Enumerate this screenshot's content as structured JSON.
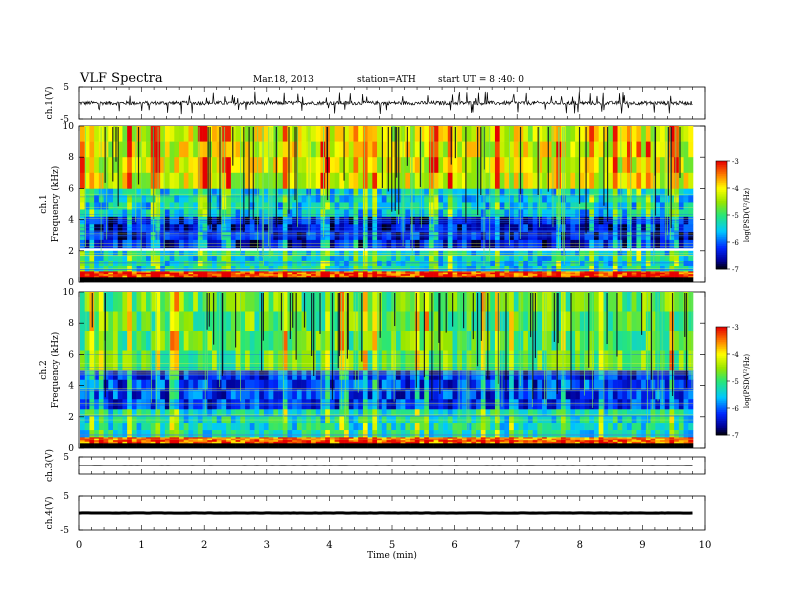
{
  "header": {
    "title": "VLF Spectra",
    "date": "Mar.18, 2013",
    "station": "station=ATH",
    "start": "start UT = 8 :40: 0"
  },
  "chart_data": [
    {
      "type": "line",
      "panel": "ch1-waveform",
      "ylabel": "ch.1(V)",
      "yticks": [
        "5",
        "-5"
      ],
      "ylim": [
        -5,
        5
      ],
      "x_range_min": [
        0,
        9.8
      ],
      "note_values": "broadband noise around ~0 V with spikes to about ±2 V"
    },
    {
      "type": "heatmap",
      "panel": "ch1-spectrogram",
      "ylabel": "ch.1 Frequency (kHz)",
      "yticks": [
        "0",
        "2",
        "4",
        "6",
        "8",
        "10"
      ],
      "ylim": [
        0,
        10
      ],
      "colorbar": {
        "label": "log(PSD(V²/Hz)",
        "ticks": [
          "-3",
          "-4",
          "-5",
          "-6",
          "-7"
        ],
        "range": [
          -7,
          -3
        ]
      },
      "bands_khz": [
        {
          "from": 0.3,
          "to": 0.7,
          "logpsd": -3.3
        },
        {
          "from": 0.7,
          "to": 2.0,
          "logpsd": -5.4
        },
        {
          "from": 2.2,
          "to": 4.2,
          "logpsd": -6.4
        },
        {
          "from": 4.2,
          "to": 6.0,
          "logpsd": -5.5
        },
        {
          "from": 6.0,
          "to": 10.0,
          "logpsd": -4.2
        }
      ]
    },
    {
      "type": "heatmap",
      "panel": "ch2-spectrogram",
      "ylabel": "ch.2 Frequency (kHz)",
      "yticks": [
        "0",
        "2",
        "4",
        "6",
        "8",
        "10"
      ],
      "ylim": [
        0,
        10
      ],
      "colorbar": {
        "label": "log(PSD(V²/Hz)",
        "ticks": [
          "-3",
          "-4",
          "-5",
          "-6",
          "-7"
        ],
        "range": [
          -7,
          -3
        ]
      },
      "bands_khz": [
        {
          "from": 0.3,
          "to": 0.7,
          "logpsd": -3.4
        },
        {
          "from": 0.7,
          "to": 2.5,
          "logpsd": -5.3
        },
        {
          "from": 2.5,
          "to": 5.0,
          "logpsd": -6.2
        },
        {
          "from": 5.0,
          "to": 10.0,
          "logpsd": -4.8
        }
      ]
    },
    {
      "type": "line",
      "panel": "ch3-waveform",
      "ylabel": "ch.3(V)",
      "yticks": [
        "5"
      ],
      "ylim": [
        -5,
        5
      ],
      "x_range_min": [
        0,
        9.8
      ],
      "note_values": "flat at about 0 V"
    },
    {
      "type": "line",
      "panel": "ch4-waveform",
      "ylabel": "ch.4(V)",
      "yticks": [
        "5",
        "-5"
      ],
      "ylim": [
        -5,
        5
      ],
      "x_range_min": [
        0,
        9.8
      ],
      "note_values": "flat at about 0 V"
    }
  ],
  "x_axis": {
    "label": "Time (min)",
    "ticks": [
      "0",
      "1",
      "2",
      "3",
      "4",
      "5",
      "6",
      "7",
      "8",
      "9",
      "10"
    ],
    "range": [
      0,
      10
    ]
  }
}
